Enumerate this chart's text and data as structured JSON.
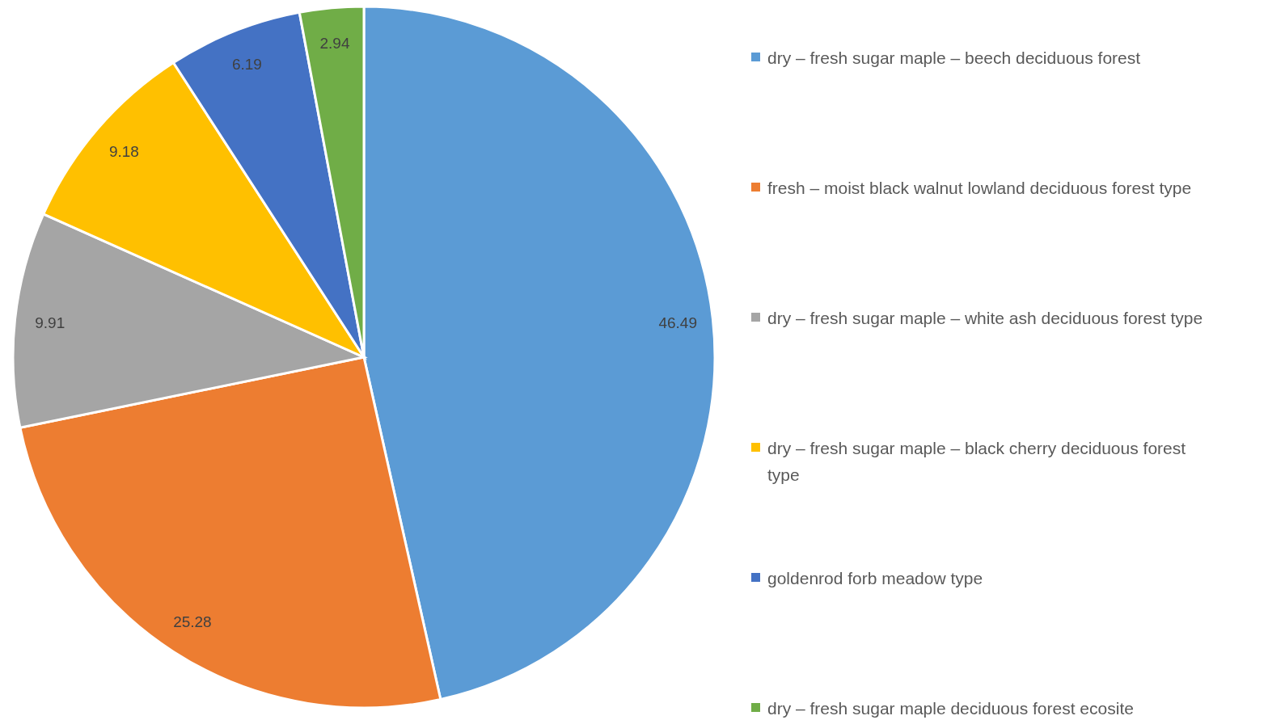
{
  "chart_data": {
    "type": "pie",
    "categories": [
      "dry – fresh sugar maple – beech deciduous forest",
      "fresh – moist black walnut lowland deciduous forest type",
      "dry – fresh sugar maple – white ash deciduous forest type",
      "dry – fresh sugar maple – black cherry deciduous forest type",
      "goldenrod forb meadow type",
      "dry – fresh sugar maple deciduous forest ecosite"
    ],
    "values": [
      46.49,
      25.28,
      9.91,
      9.18,
      6.19,
      2.94
    ],
    "colors": [
      "#5b9bd5",
      "#ed7d31",
      "#a5a5a5",
      "#ffc000",
      "#4472c4",
      "#70ad47"
    ],
    "data_labels": true,
    "legend": "right"
  }
}
